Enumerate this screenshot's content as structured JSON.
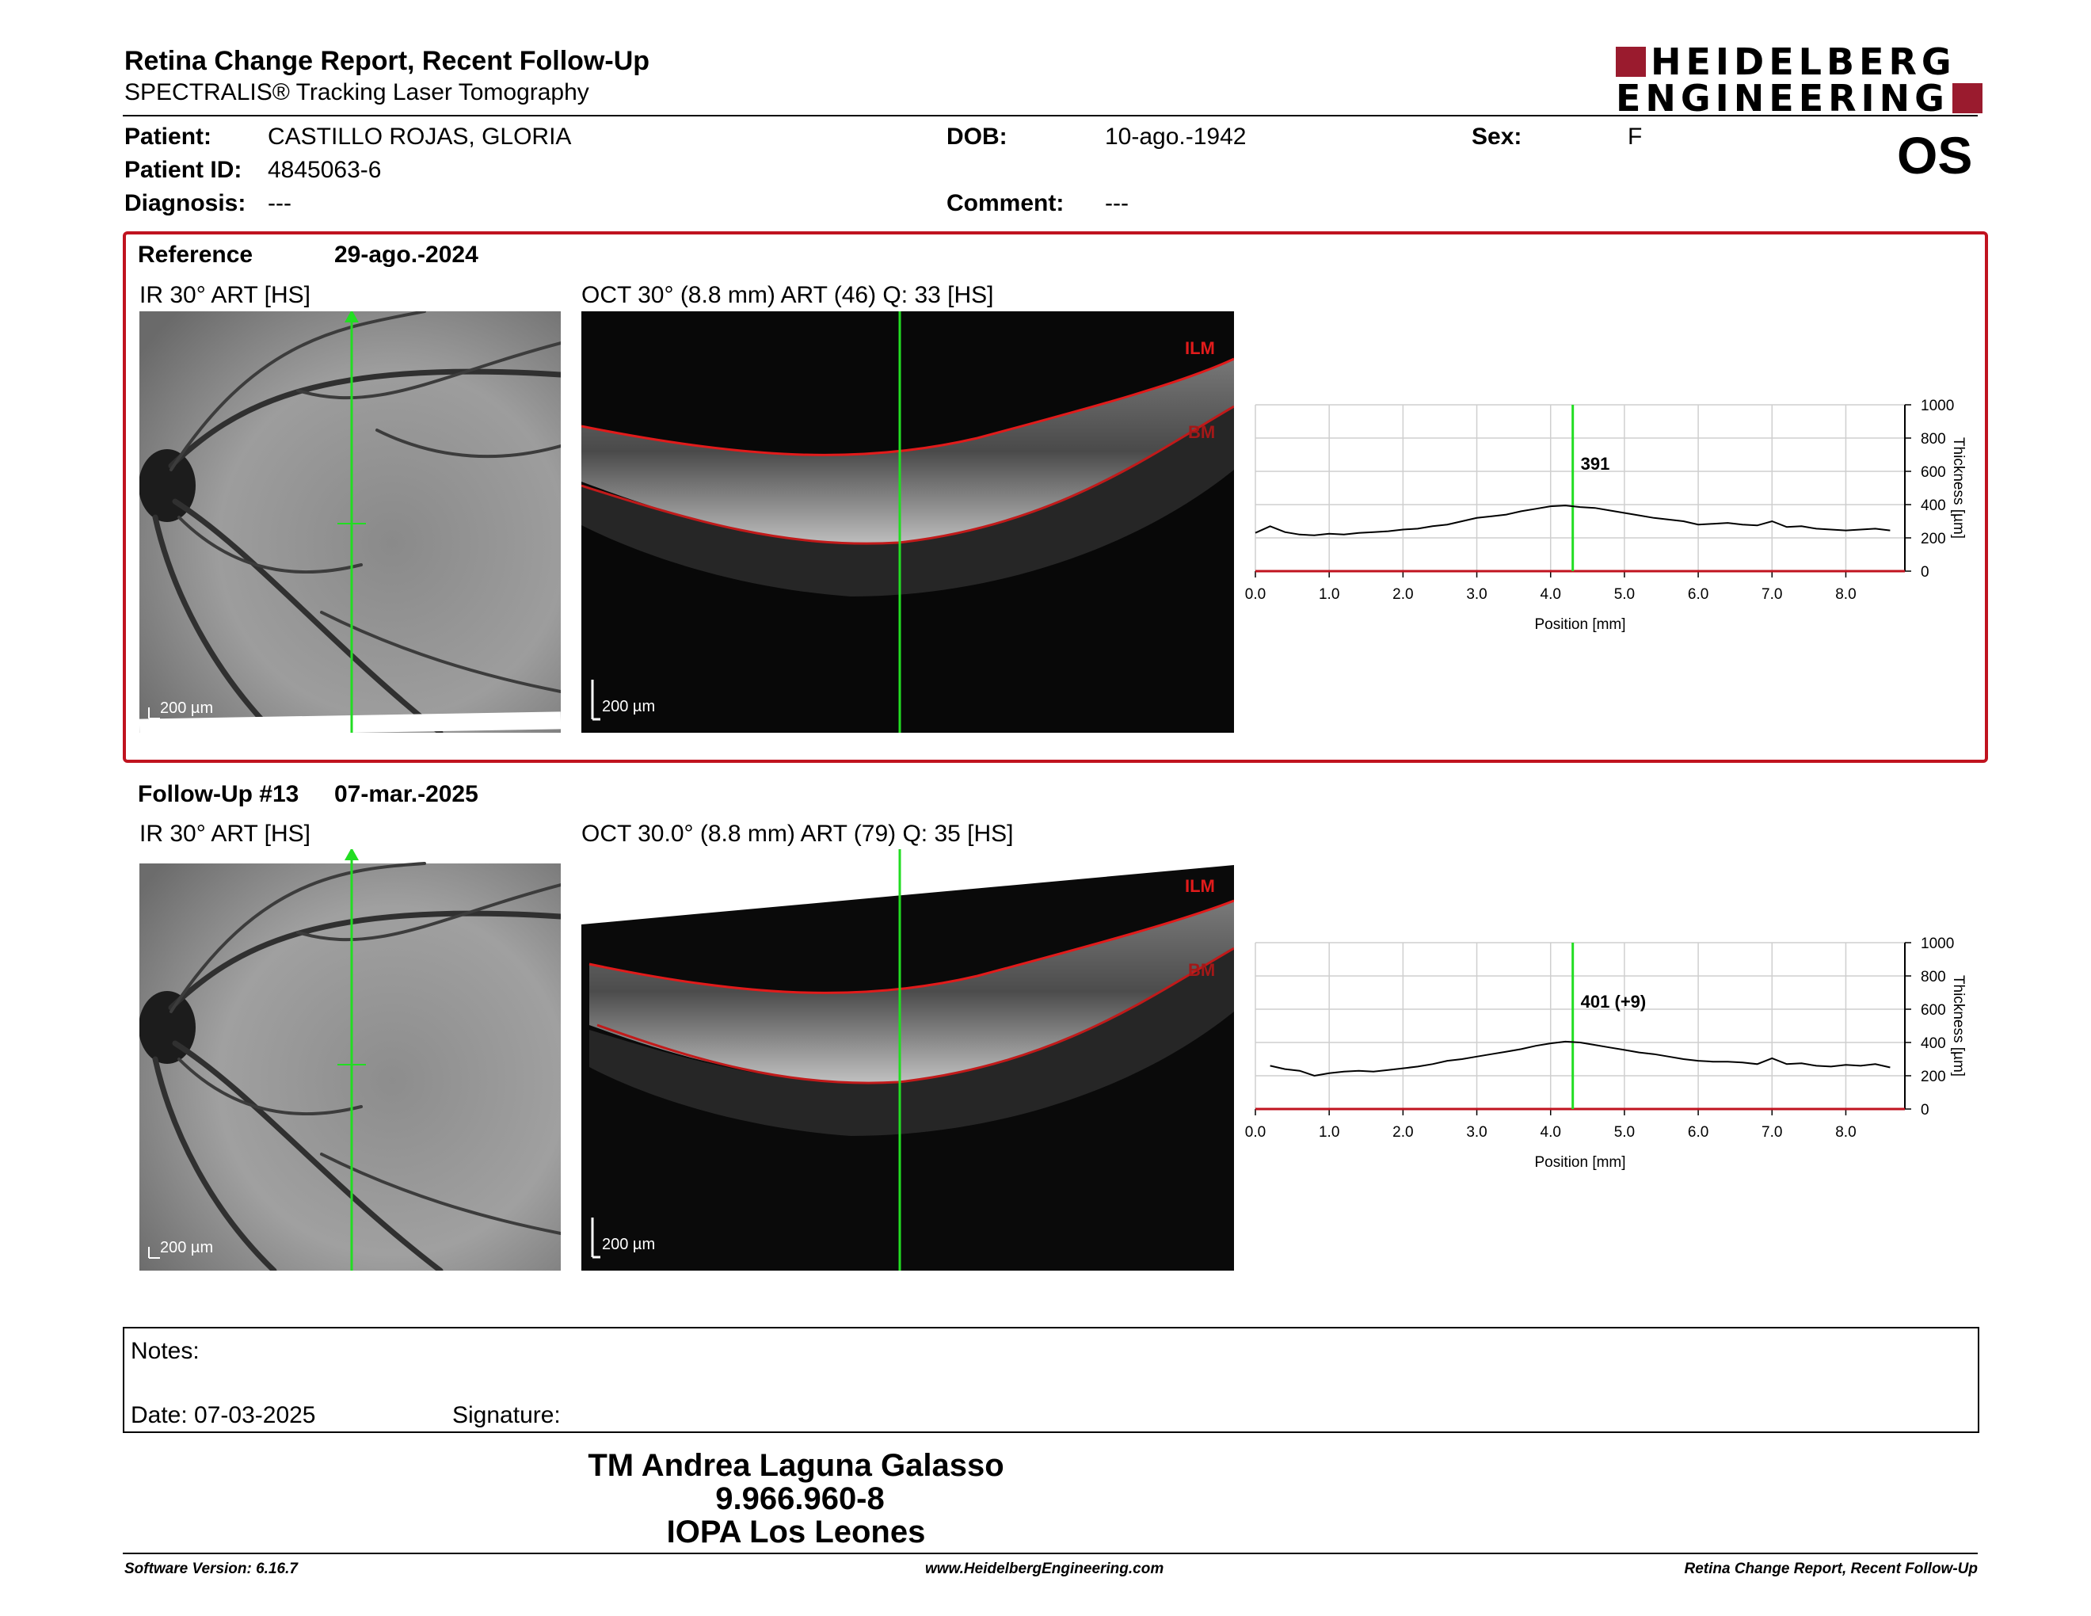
{
  "header": {
    "title": "Retina Change Report, Recent Follow-Up",
    "subtitle": "SPECTRALIS® Tracking Laser Tomography",
    "logo_line1": "HEIDELBERG",
    "logo_line2": "ENGINEERING",
    "eye": "OS"
  },
  "patient": {
    "patient_label": "Patient:",
    "patient_value": "CASTILLO ROJAS, GLORIA",
    "id_label": "Patient ID:",
    "id_value": "4845063-6",
    "diag_label": "Diagnosis:",
    "diag_value": "---",
    "dob_label": "DOB:",
    "dob_value": "10-ago.-1942",
    "comment_label": "Comment:",
    "comment_value": "---",
    "sex_label": "Sex:",
    "sex_value": "F"
  },
  "exams": [
    {
      "label": "Reference",
      "date": "29-ago.-2024",
      "ir_title": "IR 30° ART [HS]",
      "oct_title": "OCT 30° (8.8 mm) ART (46) Q: 33 [HS]",
      "ir_scale": "200 µm",
      "oct_scale": "200 µm",
      "ilm": "ILM",
      "bm": "BM",
      "chart_data": {
        "type": "line",
        "xlabel": "Position [mm]",
        "ylabel": "Thickness [µm]",
        "xlim": [
          0,
          8.8
        ],
        "ylim": [
          0,
          1000
        ],
        "x_ticks": [
          "0.0",
          "1.0",
          "2.0",
          "3.0",
          "4.0",
          "5.0",
          "6.0",
          "7.0",
          "8.0"
        ],
        "y_ticks": [
          "0",
          "200",
          "400",
          "600",
          "800",
          "1000"
        ],
        "marker_x": 4.3,
        "marker_label": "391",
        "x": [
          0.0,
          0.2,
          0.4,
          0.6,
          0.8,
          1.0,
          1.2,
          1.4,
          1.6,
          1.8,
          2.0,
          2.2,
          2.4,
          2.6,
          2.8,
          3.0,
          3.2,
          3.4,
          3.6,
          3.8,
          4.0,
          4.2,
          4.4,
          4.6,
          4.8,
          5.0,
          5.2,
          5.4,
          5.6,
          5.8,
          6.0,
          6.2,
          6.4,
          6.6,
          6.8,
          7.0,
          7.2,
          7.4,
          7.6,
          7.8,
          8.0,
          8.2,
          8.4,
          8.6
        ],
        "y": [
          230,
          270,
          235,
          220,
          215,
          225,
          220,
          230,
          235,
          240,
          250,
          255,
          270,
          280,
          300,
          320,
          330,
          340,
          360,
          375,
          390,
          395,
          385,
          380,
          365,
          350,
          335,
          320,
          310,
          300,
          280,
          285,
          290,
          280,
          275,
          300,
          265,
          270,
          255,
          250,
          245,
          250,
          255,
          245
        ]
      }
    },
    {
      "label": "Follow-Up #13",
      "date": "07-mar.-2025",
      "ir_title": "IR 30° ART [HS]",
      "oct_title": "OCT 30.0° (8.8 mm) ART (79) Q: 35 [HS]",
      "ir_scale": "200 µm",
      "oct_scale": "200 µm",
      "ilm": "ILM",
      "bm": "BM",
      "chart_data": {
        "type": "line",
        "xlabel": "Position [mm]",
        "ylabel": "Thickness [µm]",
        "xlim": [
          0,
          8.8
        ],
        "ylim": [
          0,
          1000
        ],
        "x_ticks": [
          "0.0",
          "1.0",
          "2.0",
          "3.0",
          "4.0",
          "5.0",
          "6.0",
          "7.0",
          "8.0"
        ],
        "y_ticks": [
          "0",
          "200",
          "400",
          "600",
          "800",
          "1000"
        ],
        "marker_x": 4.3,
        "marker_label": "401 (+9)",
        "x": [
          0.2,
          0.4,
          0.6,
          0.8,
          1.0,
          1.2,
          1.4,
          1.6,
          1.8,
          2.0,
          2.2,
          2.4,
          2.6,
          2.8,
          3.0,
          3.2,
          3.4,
          3.6,
          3.8,
          4.0,
          4.2,
          4.4,
          4.6,
          4.8,
          5.0,
          5.2,
          5.4,
          5.6,
          5.8,
          6.0,
          6.2,
          6.4,
          6.6,
          6.8,
          7.0,
          7.2,
          7.4,
          7.6,
          7.8,
          8.0,
          8.2,
          8.4,
          8.6
        ],
        "y": [
          260,
          240,
          230,
          200,
          215,
          225,
          230,
          225,
          235,
          245,
          255,
          270,
          290,
          300,
          315,
          330,
          345,
          360,
          380,
          395,
          405,
          400,
          385,
          370,
          355,
          340,
          330,
          315,
          300,
          290,
          285,
          285,
          280,
          270,
          305,
          270,
          275,
          260,
          255,
          265,
          260,
          270,
          250
        ]
      }
    }
  ],
  "notes": {
    "notes_label": "Notes:",
    "date_label": "Date: 07-03-2025",
    "signature_label": "Signature:"
  },
  "signatory": {
    "name": "TM Andrea Laguna Galasso",
    "id": "9.966.960-8",
    "org": "IOPA Los Leones"
  },
  "footer": {
    "left": "Software Version: 6.16.7",
    "center": "www.HeidelbergEngineering.com",
    "right": "Retina Change Report, Recent Follow-Up"
  },
  "colors": {
    "frame_red": "#c0131f",
    "brand_red": "#9a1b2e",
    "scan_green": "#22dd22",
    "ilm_red": "#e11b1b"
  }
}
